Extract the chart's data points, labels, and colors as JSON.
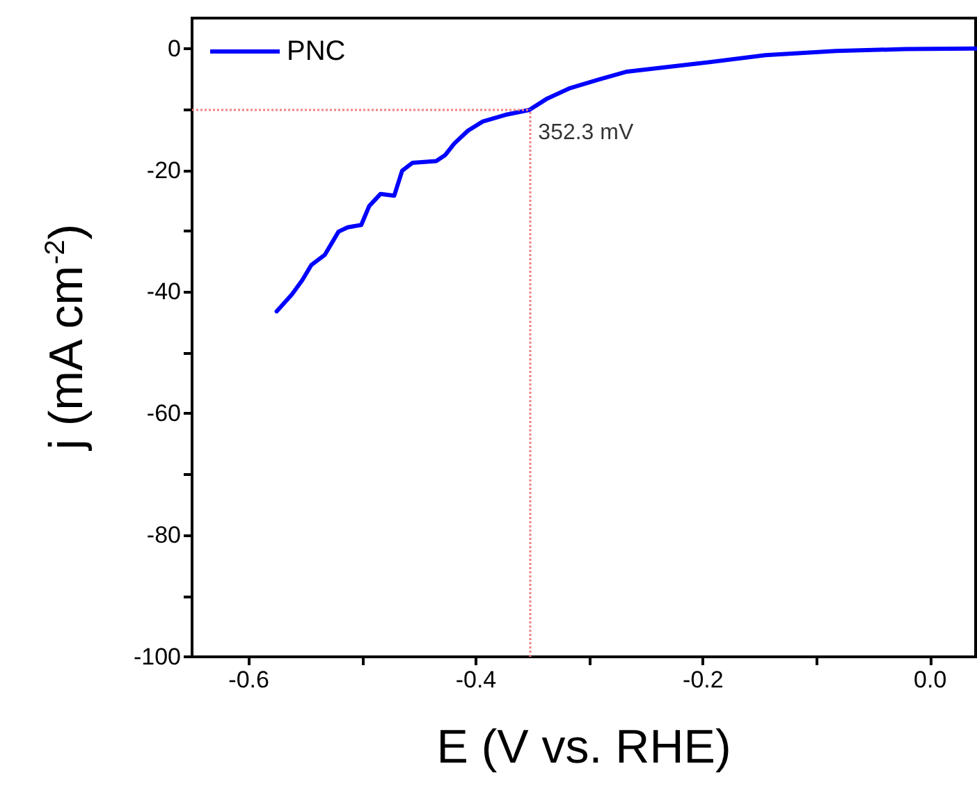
{
  "chart_data": {
    "type": "line",
    "xlabel": "E (V vs. RHE)",
    "ylabel": "j (mA cm$^{-2}$)",
    "x": [
      -0.5755,
      -0.562,
      -0.553,
      -0.545,
      -0.533,
      -0.521,
      -0.513,
      -0.501,
      -0.494,
      -0.484,
      -0.472,
      -0.465,
      -0.456,
      -0.435,
      -0.427,
      -0.419,
      -0.407,
      -0.394,
      -0.374,
      -0.353,
      -0.337,
      -0.317,
      -0.292,
      -0.267,
      -0.206,
      -0.145,
      -0.083,
      -0.022,
      0.04
    ],
    "series": [
      {
        "name": "PNC",
        "color": "#0000ff",
        "values": [
          -43.2,
          -40.4,
          -38.1,
          -35.6,
          -33.9,
          -30.1,
          -29.4,
          -29.0,
          -25.9,
          -23.9,
          -24.2,
          -20.1,
          -18.8,
          -18.5,
          -17.5,
          -15.6,
          -13.5,
          -12.0,
          -10.9,
          -10.1,
          -8.2,
          -6.5,
          -5.1,
          -3.8,
          -2.5,
          -1.1,
          -0.4,
          -0.1,
          0
        ]
      }
    ],
    "xlim": [
      -0.65,
      0.04
    ],
    "ylim": [
      -100,
      5
    ],
    "xticks": [
      -0.6,
      {
        "value": -0.5,
        "label": null
      },
      -0.4,
      {
        "value": -0.3,
        "label": null
      },
      -0.2,
      {
        "value": -0.1,
        "label": null
      },
      {
        "value": 0,
        "label": "0.0"
      }
    ],
    "yticks": [
      -100,
      {
        "value": -90,
        "label": null
      },
      -80,
      {
        "value": -70,
        "label": null
      },
      -60,
      {
        "value": -50,
        "label": null
      },
      -40,
      {
        "value": -30,
        "label": null
      },
      -20,
      {
        "value": -10,
        "label": null
      },
      0
    ],
    "ref_lines": [
      {
        "axis": "x",
        "value": -0.3523,
        "color": "#f08080",
        "line_style": "dotted"
      },
      {
        "axis": "y",
        "value": -10,
        "color": "#f08080",
        "line_style": "dotted"
      }
    ],
    "annotations": [
      {
        "text": "352.3 mV",
        "x": -0.3523,
        "y": -10
      }
    ],
    "legend": "top left",
    "grid": false,
    "marker": "none",
    "line_style": "solid"
  }
}
